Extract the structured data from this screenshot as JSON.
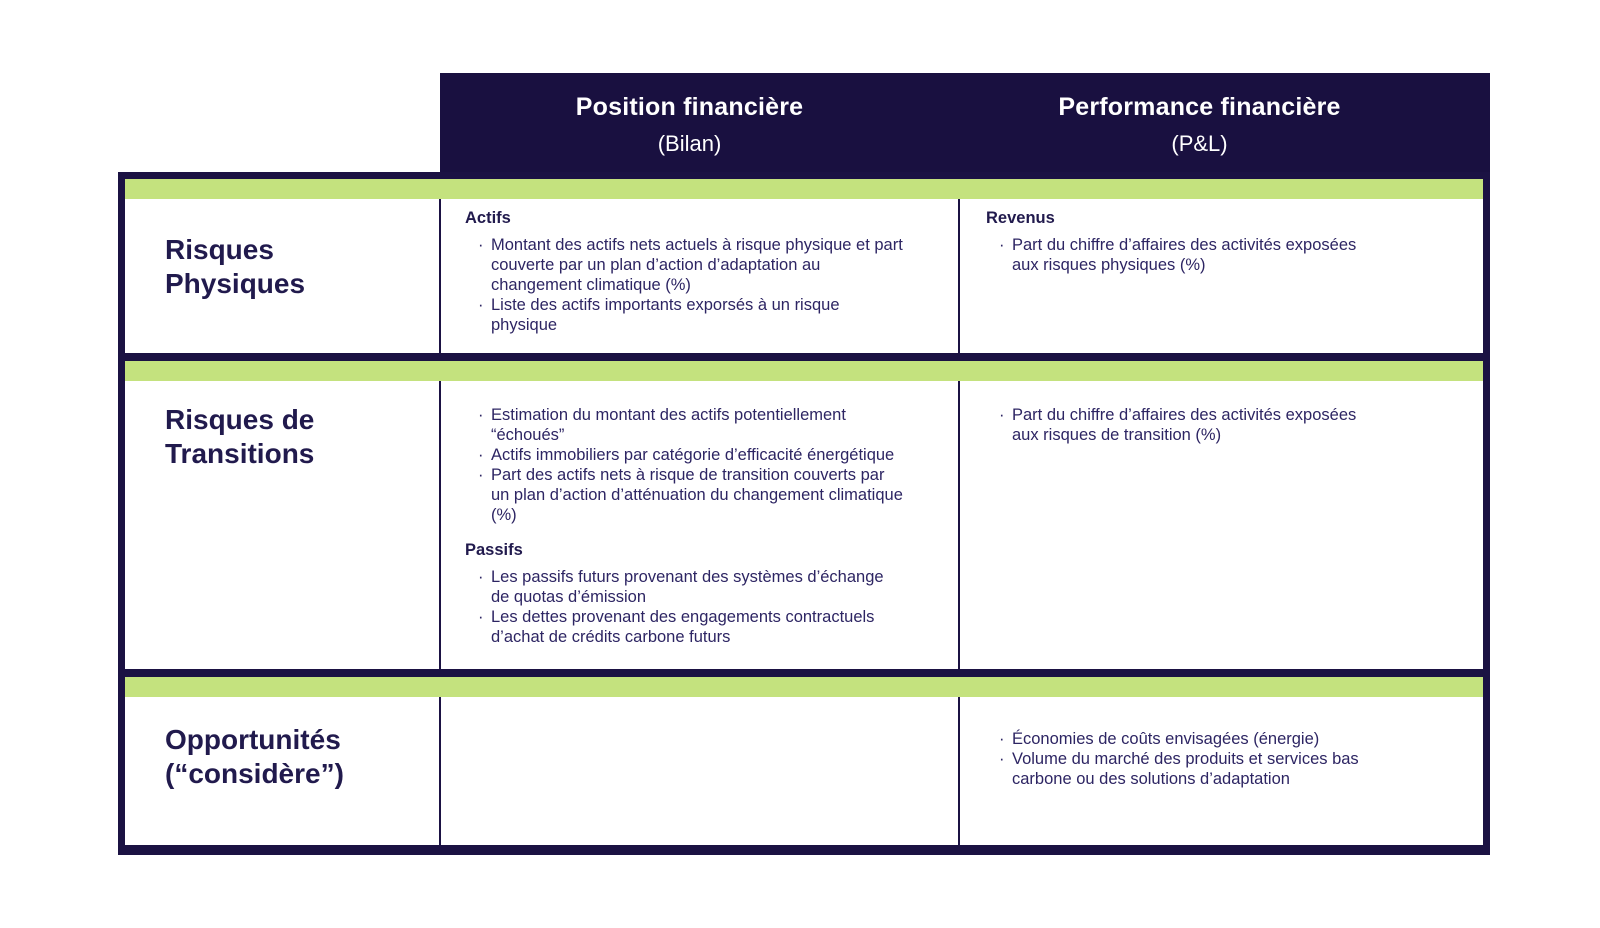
{
  "bullet_char": "·",
  "colors": {
    "header_background": "#191040",
    "accent_green": "#c4e27e",
    "border_navy": "#1b1243",
    "body_text": "#2d2563",
    "header_text": "#ffffff"
  },
  "header": {
    "columns": [
      {
        "title": "Position financière",
        "subtitle": "(Bilan)"
      },
      {
        "title": "Performance financière",
        "subtitle": "(P&L)"
      }
    ]
  },
  "rows": [
    {
      "label_lines": [
        "Risques",
        "Physiques"
      ],
      "position": {
        "sections": [
          {
            "heading": "Actifs",
            "bullets": [
              "Montant des actifs nets actuels à risque physique et part couverte par un plan d’action d’adaptation au changement climatique (%)",
              "Liste des actifs importants exporsés à un risque physique"
            ]
          }
        ]
      },
      "performance": {
        "sections": [
          {
            "heading": "Revenus",
            "bullets": [
              "Part du chiffre d’affaires des activités exposées aux risques physiques (%)"
            ]
          }
        ]
      }
    },
    {
      "label_lines": [
        "Risques de",
        "Transitions"
      ],
      "position": {
        "sections": [
          {
            "bullets": [
              "Estimation du montant des actifs potentiellement “échoués”",
              "Actifs immobiliers par catégorie d’efficacité énergétique",
              "Part des actifs nets à risque de transition couverts par un plan d’action d’atténuation du changement climatique (%)"
            ]
          },
          {
            "heading": "Passifs",
            "bullets": [
              "Les passifs futurs provenant des systèmes d’échange de quotas d’émission",
              "Les dettes provenant des engagements contractuels d’achat de crédits carbone futurs"
            ]
          }
        ]
      },
      "performance": {
        "sections": [
          {
            "bullets": [
              "Part du chiffre d’affaires des activités exposées aux risques de transition (%)"
            ]
          }
        ]
      }
    },
    {
      "label_lines": [
        "Opportunités",
        "(“considère”)"
      ],
      "position": {
        "sections": []
      },
      "performance": {
        "sections": [
          {
            "bullets": [
              "Économies de coûts envisagées (énergie)",
              "Volume du marché des produits et services bas carbone ou des solutions d’adaptation"
            ]
          }
        ]
      }
    }
  ]
}
